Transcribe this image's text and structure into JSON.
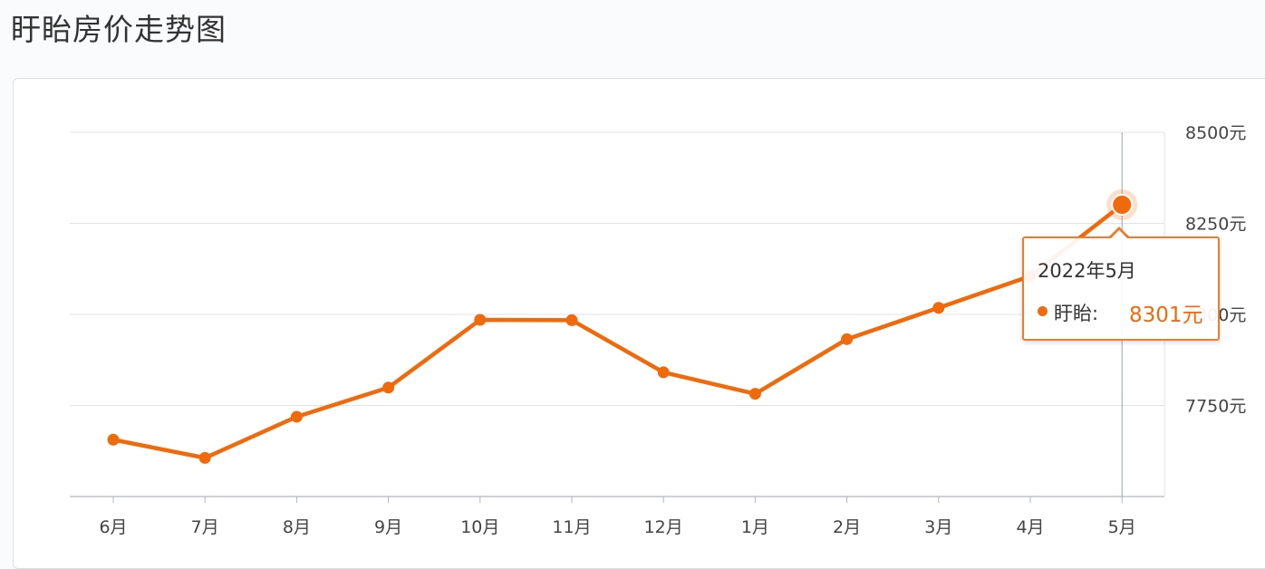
{
  "page": {
    "title": "盱眙房价走势图"
  },
  "colors": {
    "line": "#f06a0c",
    "grid": "#dfe3e8",
    "tooltip_border": "#f07b2a"
  },
  "tooltip": {
    "date": "2022年5月",
    "series_name": "盱眙:",
    "value": "8301元"
  },
  "chart_data": {
    "type": "line",
    "title": "盱眙房价走势图",
    "categories": [
      "6月",
      "7月",
      "8月",
      "9月",
      "10月",
      "11月",
      "12月",
      "1月",
      "2月",
      "3月",
      "4月",
      "5月"
    ],
    "series": [
      {
        "name": "盱眙",
        "values": [
          7656,
          7606,
          7719,
          7799,
          7985,
          7984,
          7841,
          7782,
          7932,
          8018,
          8105,
          8301
        ]
      }
    ],
    "y_ticks": [
      "7750元",
      "8000元",
      "8250元",
      "8500元"
    ],
    "y_tick_values": [
      7750,
      8000,
      8250,
      8500
    ],
    "ylim": [
      7500,
      8500
    ],
    "grid": true,
    "y_axis_side": "right",
    "highlighted_category": "5月"
  }
}
